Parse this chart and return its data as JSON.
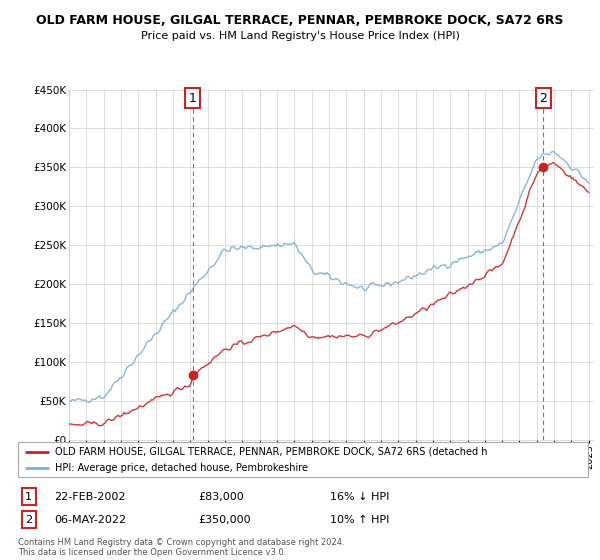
{
  "title": "OLD FARM HOUSE, GILGAL TERRACE, PENNAR, PEMBROKE DOCK, SA72 6RS",
  "subtitle": "Price paid vs. HM Land Registry's House Price Index (HPI)",
  "hpi_color": "#7bafd4",
  "price_color": "#cc2222",
  "sale1_date": 2002.13,
  "sale1_price": 83000,
  "sale2_date": 2022.37,
  "sale2_price": 350000,
  "legend_line1": "OLD FARM HOUSE, GILGAL TERRACE, PENNAR, PEMBROKE DOCK, SA72 6RS (detached h",
  "legend_line2": "HPI: Average price, detached house, Pembrokeshire",
  "table_row1": [
    "1",
    "22-FEB-2002",
    "£83,000",
    "16% ↓ HPI"
  ],
  "table_row2": [
    "2",
    "06-MAY-2022",
    "£350,000",
    "10% ↑ HPI"
  ],
  "footnote": "Contains HM Land Registry data © Crown copyright and database right 2024.\nThis data is licensed under the Open Government Licence v3.0."
}
